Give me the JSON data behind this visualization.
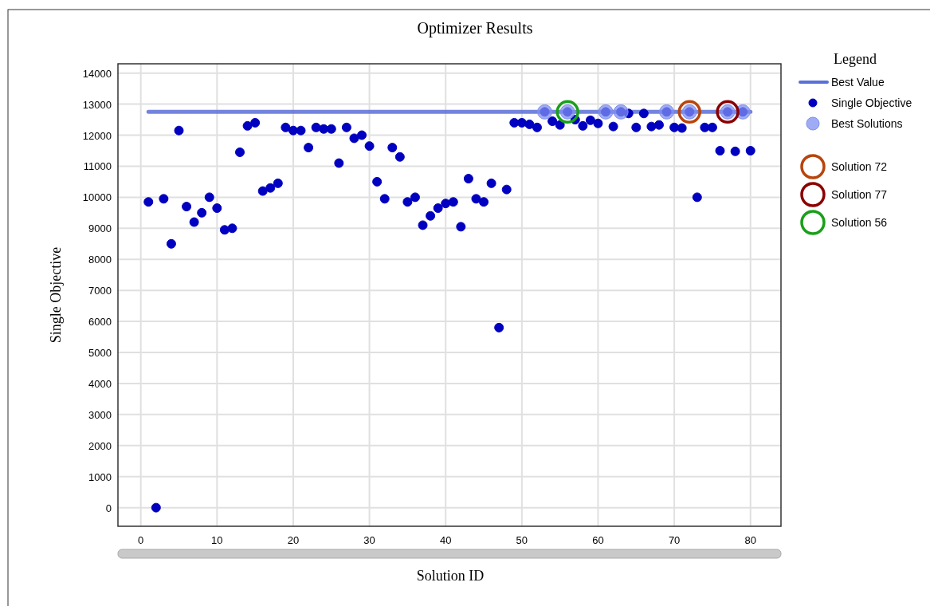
{
  "chart_data": {
    "type": "scatter",
    "title": "Optimizer Results",
    "xlabel": "Solution ID",
    "ylabel": "Single Objective",
    "legend_title": "Legend",
    "legend": "right",
    "grid": true,
    "xlim": [
      -3,
      84
    ],
    "xticks": [
      0,
      10,
      20,
      30,
      40,
      50,
      60,
      70,
      80
    ],
    "ylim": [
      -600,
      14300
    ],
    "yticks": [
      0,
      1000,
      2000,
      3000,
      4000,
      5000,
      6000,
      7000,
      8000,
      9000,
      10000,
      11000,
      12000,
      13000,
      14000
    ],
    "series": [
      {
        "name": "Best Value",
        "type": "line",
        "color": "#5a6fd8",
        "marker": "none",
        "x": [
          1,
          80
        ],
        "values": [
          12750,
          12750
        ]
      },
      {
        "name": "Single Objective",
        "color": "#0000c0",
        "marker": "circle",
        "x": [
          1,
          2,
          3,
          4,
          5,
          6,
          7,
          8,
          9,
          10,
          11,
          12,
          13,
          14,
          15,
          16,
          17,
          18,
          19,
          20,
          21,
          22,
          23,
          24,
          25,
          26,
          27,
          28,
          29,
          30,
          31,
          32,
          33,
          34,
          35,
          36,
          37,
          38,
          39,
          40,
          41,
          42,
          43,
          44,
          45,
          46,
          47,
          48,
          49,
          50,
          51,
          52,
          53,
          54,
          55,
          56,
          57,
          58,
          59,
          60,
          61,
          62,
          63,
          64,
          65,
          66,
          67,
          68,
          69,
          70,
          71,
          72,
          73,
          74,
          75,
          76,
          77,
          78,
          79,
          80
        ],
        "values": [
          9850,
          0,
          9950,
          8500,
          12150,
          9700,
          9200,
          9500,
          10000,
          9650,
          8950,
          9000,
          11450,
          12300,
          12400,
          10200,
          10300,
          10450,
          12250,
          12150,
          12150,
          11600,
          12250,
          12200,
          12200,
          11100,
          12250,
          11900,
          12000,
          11650,
          10500,
          9950,
          11600,
          11300,
          9850,
          10000,
          9100,
          9400,
          9650,
          9800,
          9850,
          9050,
          10600,
          9950,
          9850,
          10450,
          5800,
          10250,
          12400,
          12400,
          12350,
          12250,
          12750,
          12450,
          12330,
          12750,
          12500,
          12300,
          12480,
          12380,
          12750,
          12280,
          12750,
          12700,
          12250,
          12700,
          12280,
          12330,
          12750,
          12250,
          12230,
          12750,
          10000,
          12250,
          12250,
          11500,
          12750,
          11480,
          12750,
          11500
        ]
      },
      {
        "name": "Best Solutions",
        "color": "#7f8ff0",
        "marker": "circle",
        "x": [
          53,
          56,
          61,
          63,
          69,
          72,
          77,
          79
        ],
        "values": [
          12750,
          12750,
          12750,
          12750,
          12750,
          12750,
          12750,
          12750
        ]
      },
      {
        "name": "Solution 72",
        "color": "#b8440c",
        "marker": "circle",
        "line_style": "solid",
        "x": [
          72
        ],
        "values": [
          12750
        ]
      },
      {
        "name": "Solution 77",
        "color": "#8b0000",
        "marker": "circle",
        "line_style": "solid",
        "x": [
          77
        ],
        "values": [
          12750
        ]
      },
      {
        "name": "Solution 56",
        "color": "#19a019",
        "marker": "circle",
        "line_style": "solid",
        "x": [
          56
        ],
        "values": [
          12750
        ]
      }
    ]
  }
}
